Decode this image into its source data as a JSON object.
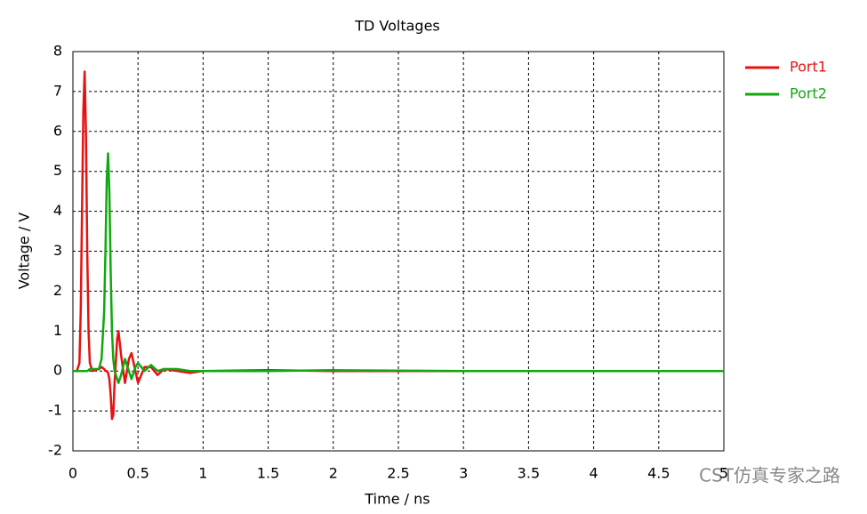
{
  "chart_data": {
    "type": "line",
    "title": "TD Voltages",
    "x_label": "Time / ns",
    "y_label": "Voltage / V",
    "watermark": "CST仿真专家之路",
    "x": [
      0,
      0.03,
      0.05,
      0.06,
      0.07,
      0.08,
      0.09,
      0.1,
      0.11,
      0.12,
      0.13,
      0.15,
      0.2,
      0.22,
      0.24,
      0.25,
      0.26,
      0.27,
      0.28,
      0.29,
      0.3,
      0.31,
      0.32,
      0.34,
      0.35,
      0.37,
      0.4,
      0.43,
      0.45,
      0.48,
      0.5,
      0.55,
      0.6,
      0.65,
      0.7,
      0.8,
      0.9,
      1.0,
      1.5,
      2,
      3,
      4,
      5
    ],
    "series": [
      {
        "name": "Port1",
        "color": "#e81010",
        "values": [
          0,
          0,
          0.2,
          1.5,
          4,
          6.5,
          7.5,
          6,
          3,
          1,
          0.2,
          0,
          0.05,
          0.1,
          0.05,
          0,
          0,
          -0.05,
          -0.2,
          -0.6,
          -1.2,
          -1.1,
          -0.3,
          0.8,
          1.0,
          0.4,
          -0.3,
          0.3,
          0.45,
          0,
          -0.3,
          0.1,
          0.1,
          -0.1,
          0.05,
          0,
          -0.05,
          0,
          0.02,
          0,
          0,
          0,
          0
        ]
      },
      {
        "name": "Port2",
        "color": "#10a810",
        "values": [
          0,
          0,
          0,
          0,
          0,
          0,
          0,
          0,
          0,
          0.02,
          0.05,
          0.05,
          0.05,
          0.3,
          1.5,
          3,
          4.8,
          5.45,
          4.5,
          2.5,
          1,
          0.3,
          0,
          -0.2,
          -0.3,
          -0.1,
          0.3,
          0,
          -0.2,
          0.1,
          0.2,
          0,
          0.15,
          0,
          0.05,
          0.05,
          0,
          0,
          0,
          0.02,
          0,
          0,
          0
        ]
      }
    ],
    "xlim": [
      0,
      5
    ],
    "xticks": [
      0,
      0.5,
      1,
      1.5,
      2,
      2.5,
      3,
      3.5,
      4,
      4.5,
      5
    ],
    "ylim": [
      -2,
      8
    ],
    "yticks": [
      -2,
      -1,
      0,
      1,
      2,
      3,
      4,
      5,
      6,
      7,
      8
    ],
    "grid": true,
    "legend": "top-right"
  }
}
